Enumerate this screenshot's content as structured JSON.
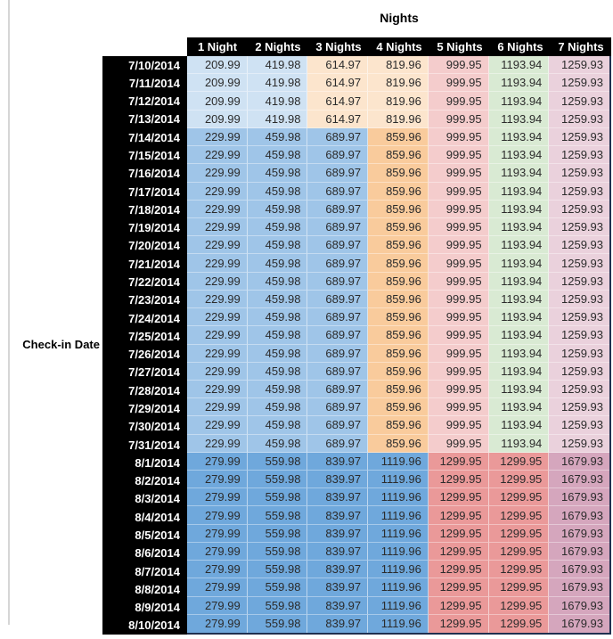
{
  "palette": {
    "header_bg": "#000000",
    "header_text": "#FFFFFF",
    "table_outline": "#203050",
    "left_rule": "#D6D6D6",
    "cell_text": "#2B2B2B"
  },
  "chart_data": {
    "type": "table",
    "title": "Nights",
    "row_axis_label": "Check-in Date",
    "columns": [
      "1 Night",
      "2 Nights",
      "3 Nights",
      "4 Nights",
      "5 Nights",
      "6 Nights",
      "7 Nights"
    ],
    "tiers": {
      "early": {
        "cell_colors": [
          "#CFE2F3",
          "#CFE2F3",
          "#FCE5CD",
          "#FCE5CD",
          "#F4CCCC",
          "#D9EAD3",
          "#EAD1DC"
        ]
      },
      "mid": {
        "cell_colors": [
          "#9FC5E8",
          "#9FC5E8",
          "#9FC5E8",
          "#F9CB9C",
          "#F4CCCC",
          "#D9EAD3",
          "#EAD1DC"
        ]
      },
      "peak": {
        "cell_colors": [
          "#6FA8DC",
          "#6FA8DC",
          "#6FA8DC",
          "#6FA8DC",
          "#EA9999",
          "#EA9999",
          "#D5A6BD"
        ]
      }
    },
    "rows": [
      {
        "date": "7/10/2014",
        "tier": "early",
        "values": [
          209.99,
          419.98,
          614.97,
          819.96,
          999.95,
          1193.94,
          1259.93
        ]
      },
      {
        "date": "7/11/2014",
        "tier": "early",
        "values": [
          209.99,
          419.98,
          614.97,
          819.96,
          999.95,
          1193.94,
          1259.93
        ]
      },
      {
        "date": "7/12/2014",
        "tier": "early",
        "values": [
          209.99,
          419.98,
          614.97,
          819.96,
          999.95,
          1193.94,
          1259.93
        ]
      },
      {
        "date": "7/13/2014",
        "tier": "early",
        "values": [
          209.99,
          419.98,
          614.97,
          819.96,
          999.95,
          1193.94,
          1259.93
        ]
      },
      {
        "date": "7/14/2014",
        "tier": "mid",
        "values": [
          229.99,
          459.98,
          689.97,
          859.96,
          999.95,
          1193.94,
          1259.93
        ]
      },
      {
        "date": "7/15/2014",
        "tier": "mid",
        "values": [
          229.99,
          459.98,
          689.97,
          859.96,
          999.95,
          1193.94,
          1259.93
        ]
      },
      {
        "date": "7/16/2014",
        "tier": "mid",
        "values": [
          229.99,
          459.98,
          689.97,
          859.96,
          999.95,
          1193.94,
          1259.93
        ]
      },
      {
        "date": "7/17/2014",
        "tier": "mid",
        "values": [
          229.99,
          459.98,
          689.97,
          859.96,
          999.95,
          1193.94,
          1259.93
        ]
      },
      {
        "date": "7/18/2014",
        "tier": "mid",
        "values": [
          229.99,
          459.98,
          689.97,
          859.96,
          999.95,
          1193.94,
          1259.93
        ]
      },
      {
        "date": "7/19/2014",
        "tier": "mid",
        "values": [
          229.99,
          459.98,
          689.97,
          859.96,
          999.95,
          1193.94,
          1259.93
        ]
      },
      {
        "date": "7/20/2014",
        "tier": "mid",
        "values": [
          229.99,
          459.98,
          689.97,
          859.96,
          999.95,
          1193.94,
          1259.93
        ]
      },
      {
        "date": "7/21/2014",
        "tier": "mid",
        "values": [
          229.99,
          459.98,
          689.97,
          859.96,
          999.95,
          1193.94,
          1259.93
        ]
      },
      {
        "date": "7/22/2014",
        "tier": "mid",
        "values": [
          229.99,
          459.98,
          689.97,
          859.96,
          999.95,
          1193.94,
          1259.93
        ]
      },
      {
        "date": "7/23/2014",
        "tier": "mid",
        "values": [
          229.99,
          459.98,
          689.97,
          859.96,
          999.95,
          1193.94,
          1259.93
        ]
      },
      {
        "date": "7/24/2014",
        "tier": "mid",
        "values": [
          229.99,
          459.98,
          689.97,
          859.96,
          999.95,
          1193.94,
          1259.93
        ]
      },
      {
        "date": "7/25/2014",
        "tier": "mid",
        "values": [
          229.99,
          459.98,
          689.97,
          859.96,
          999.95,
          1193.94,
          1259.93
        ]
      },
      {
        "date": "7/26/2014",
        "tier": "mid",
        "values": [
          229.99,
          459.98,
          689.97,
          859.96,
          999.95,
          1193.94,
          1259.93
        ]
      },
      {
        "date": "7/27/2014",
        "tier": "mid",
        "values": [
          229.99,
          459.98,
          689.97,
          859.96,
          999.95,
          1193.94,
          1259.93
        ]
      },
      {
        "date": "7/28/2014",
        "tier": "mid",
        "values": [
          229.99,
          459.98,
          689.97,
          859.96,
          999.95,
          1193.94,
          1259.93
        ]
      },
      {
        "date": "7/29/2014",
        "tier": "mid",
        "values": [
          229.99,
          459.98,
          689.97,
          859.96,
          999.95,
          1193.94,
          1259.93
        ]
      },
      {
        "date": "7/30/2014",
        "tier": "mid",
        "values": [
          229.99,
          459.98,
          689.97,
          859.96,
          999.95,
          1193.94,
          1259.93
        ]
      },
      {
        "date": "7/31/2014",
        "tier": "mid",
        "values": [
          229.99,
          459.98,
          689.97,
          859.96,
          999.95,
          1193.94,
          1259.93
        ]
      },
      {
        "date": "8/1/2014",
        "tier": "peak",
        "values": [
          279.99,
          559.98,
          839.97,
          1119.96,
          1299.95,
          1299.95,
          1679.93
        ]
      },
      {
        "date": "8/2/2014",
        "tier": "peak",
        "values": [
          279.99,
          559.98,
          839.97,
          1119.96,
          1299.95,
          1299.95,
          1679.93
        ]
      },
      {
        "date": "8/3/2014",
        "tier": "peak",
        "values": [
          279.99,
          559.98,
          839.97,
          1119.96,
          1299.95,
          1299.95,
          1679.93
        ]
      },
      {
        "date": "8/4/2014",
        "tier": "peak",
        "values": [
          279.99,
          559.98,
          839.97,
          1119.96,
          1299.95,
          1299.95,
          1679.93
        ]
      },
      {
        "date": "8/5/2014",
        "tier": "peak",
        "values": [
          279.99,
          559.98,
          839.97,
          1119.96,
          1299.95,
          1299.95,
          1679.93
        ]
      },
      {
        "date": "8/6/2014",
        "tier": "peak",
        "values": [
          279.99,
          559.98,
          839.97,
          1119.96,
          1299.95,
          1299.95,
          1679.93
        ]
      },
      {
        "date": "8/7/2014",
        "tier": "peak",
        "values": [
          279.99,
          559.98,
          839.97,
          1119.96,
          1299.95,
          1299.95,
          1679.93
        ]
      },
      {
        "date": "8/8/2014",
        "tier": "peak",
        "values": [
          279.99,
          559.98,
          839.97,
          1119.96,
          1299.95,
          1299.95,
          1679.93
        ]
      },
      {
        "date": "8/9/2014",
        "tier": "peak",
        "values": [
          279.99,
          559.98,
          839.97,
          1119.96,
          1299.95,
          1299.95,
          1679.93
        ]
      },
      {
        "date": "8/10/2014",
        "tier": "peak",
        "values": [
          279.99,
          559.98,
          839.97,
          1119.96,
          1299.95,
          1299.95,
          1679.93
        ]
      }
    ]
  }
}
